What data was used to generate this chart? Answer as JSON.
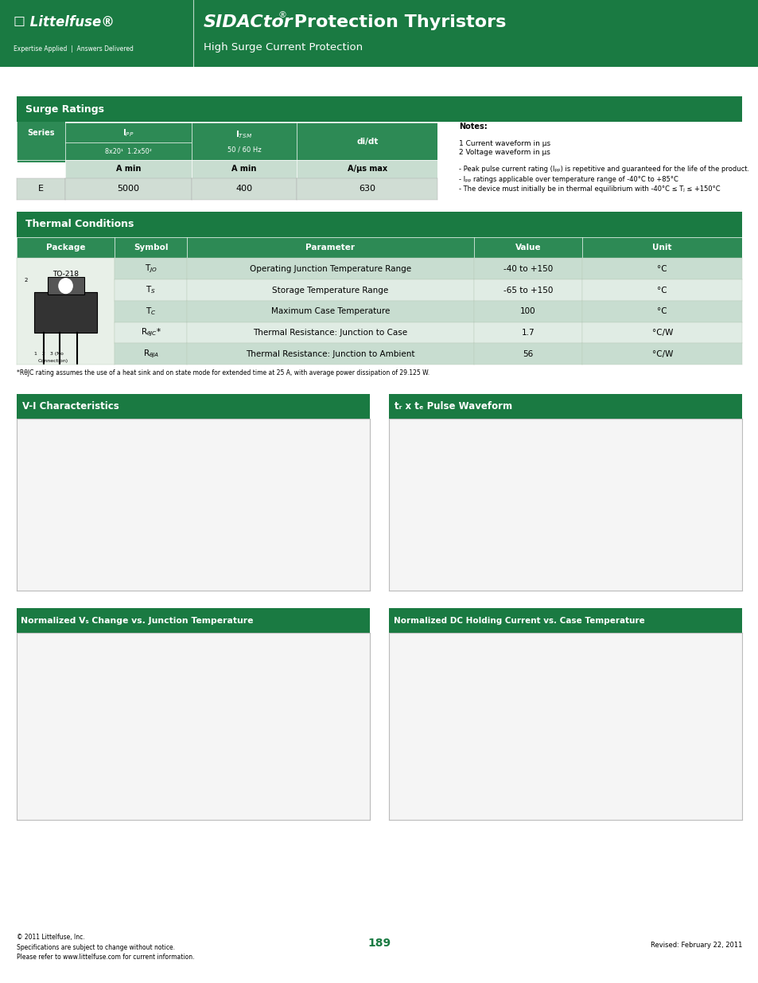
{
  "dark_green": "#1a7a42",
  "medium_green": "#2d9a5a",
  "light_green_row1": "#c8ddd0",
  "light_green_row2": "#e0ece4",
  "table_header_bg": "#2d8a55",
  "page_bg": "#ffffff",
  "section1_title": "Surge Ratings",
  "section2_title": "Thermal Conditions",
  "section3_title": "V-I Characteristics",
  "section4_title": "tᵣ x tₑ Pulse Waveform",
  "section5_title": "Normalized Vₛ Change vs. Junction Temperature",
  "section6_title": "Normalized DC Holding Current vs. Case Temperature",
  "surge_row": [
    "E",
    "5000",
    "400",
    "630"
  ],
  "thermal_rows": [
    [
      "T_JO",
      "Operating Junction Temperature Range",
      "-40 to +150",
      "°C"
    ],
    [
      "T_S",
      "Storage Temperature Range",
      "-65 to +150",
      "°C"
    ],
    [
      "T_C",
      "Maximum Case Temperature",
      "100",
      "°C"
    ],
    [
      "R_thetaJC*",
      "Thermal Resistance: Junction to Case",
      "1.7",
      "°C/W"
    ],
    [
      "R_thetaJA",
      "Thermal Resistance: Junction to Ambient",
      "56",
      "°C/W"
    ]
  ],
  "footnote_thermal": "*RθJC rating assumes the use of a heat sink and on state mode for extended time at 25 A, with average power dissipation of 29.125 W.",
  "footer_left": "© 2011 Littelfuse, Inc.\nSpecifications are subject to change without notice.\nPlease refer to www.littelfuse.com for current information.",
  "footer_center": "189",
  "footer_right": "Revised: February 22, 2011"
}
